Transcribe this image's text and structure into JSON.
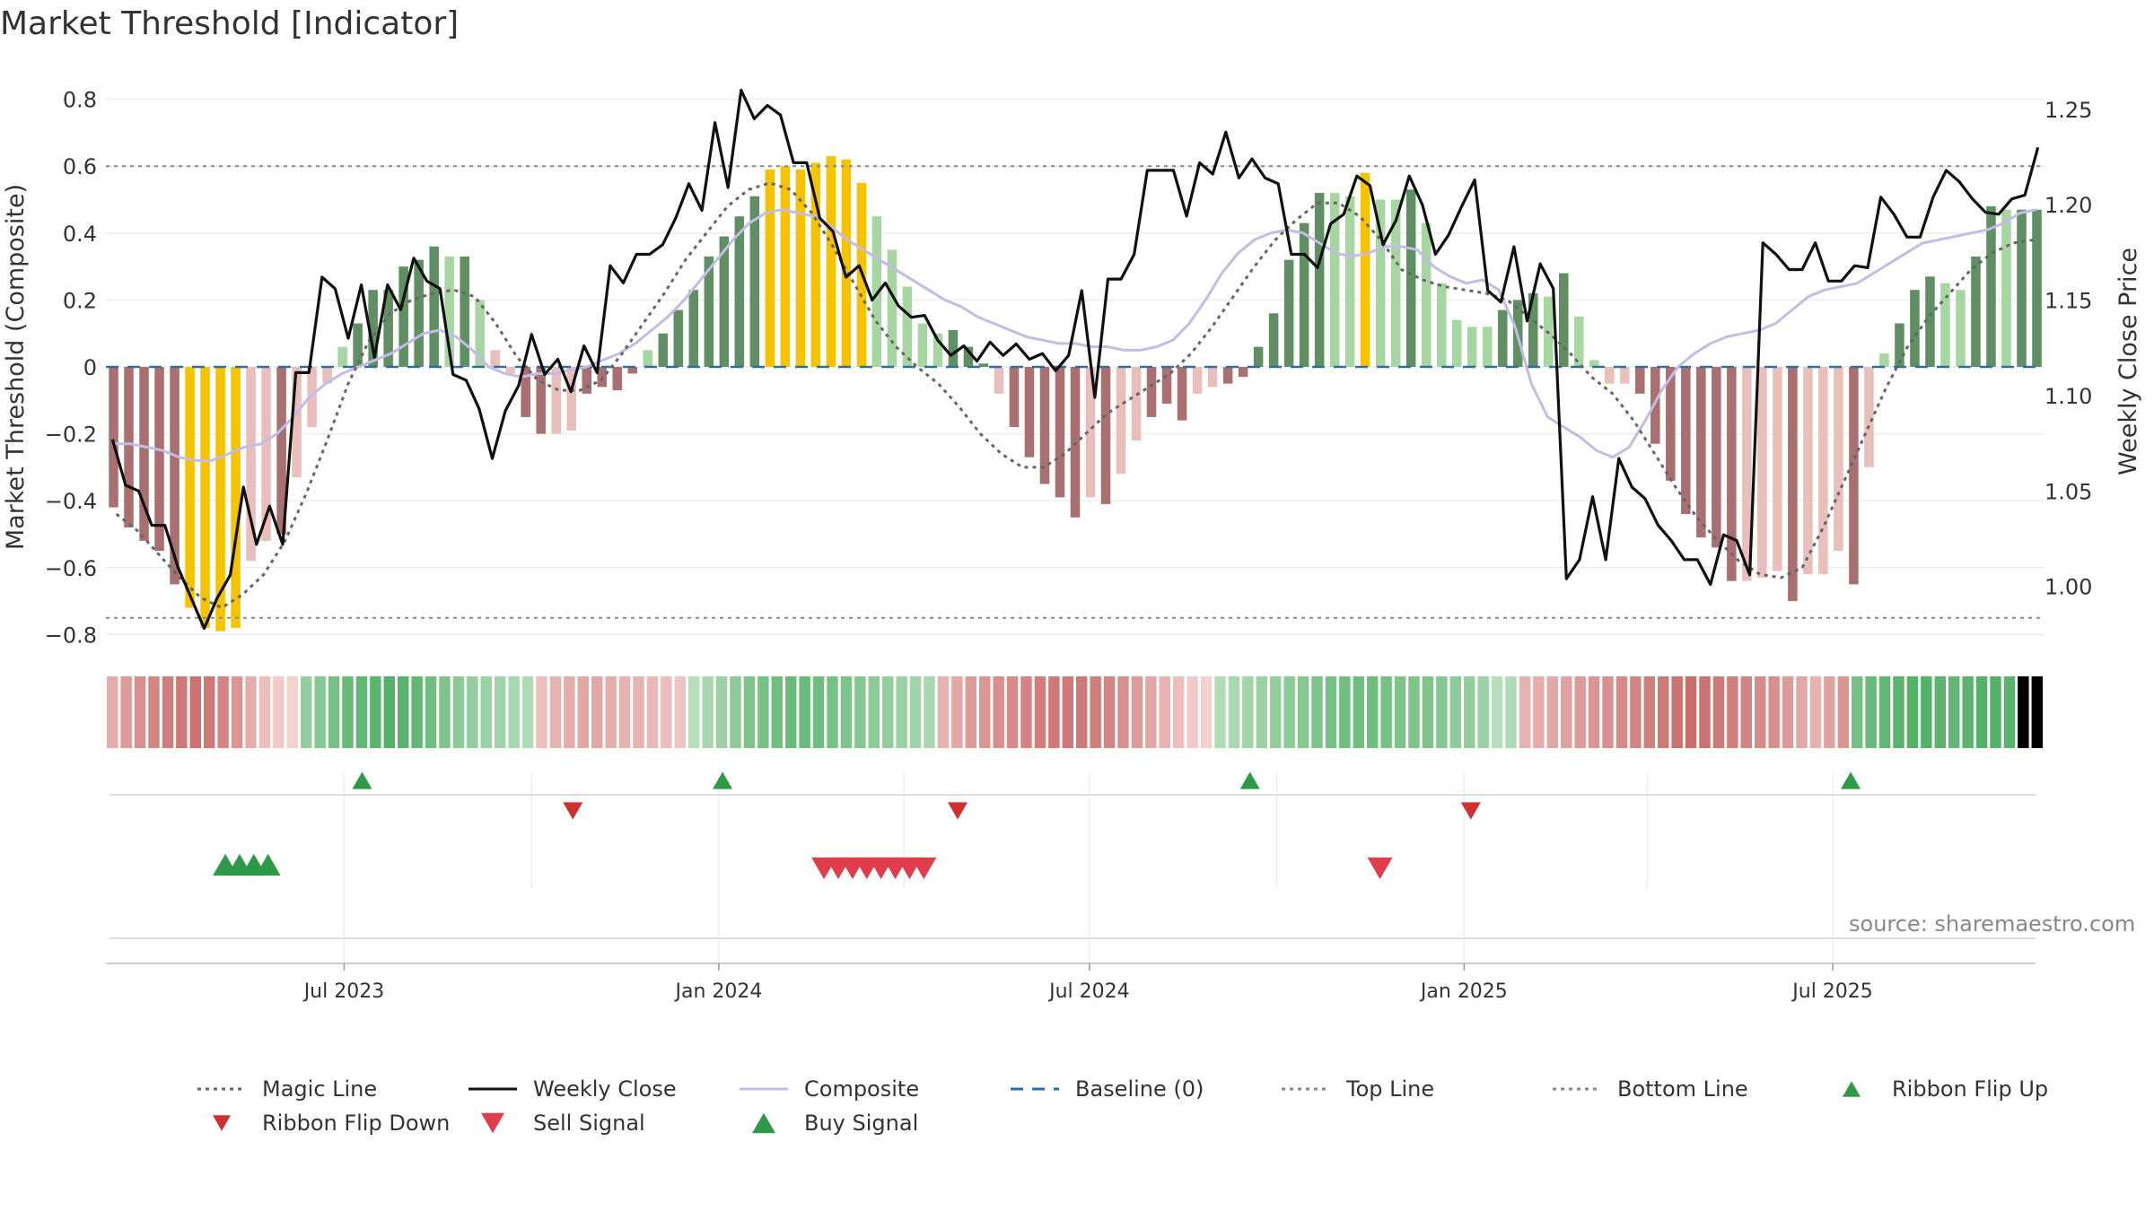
{
  "title": "Market Threshold [Indicator]",
  "source": "source: sharemaestro.com",
  "colors": {
    "dark_green": "#5f8f62",
    "light_green": "#a8d6a3",
    "dark_red": "#a87070",
    "light_red": "#e9bfbc",
    "yellow": "#f6c300",
    "weekly_close": "#111111",
    "composite": "#c3bde6",
    "magic_line": "#666666",
    "baseline": "#2f6fa0",
    "threshold_lines": "#888888",
    "buy": "#2e9a48",
    "sell": "#e03c4b",
    "flip_up": "#2e9a48",
    "flip_down": "#d03030"
  },
  "chart_data": {
    "type": "bar",
    "left_axis": {
      "label": "Market Threshold (Composite)",
      "ylim": [
        -0.85,
        0.85
      ],
      "ticks": [
        "0.8",
        "0.6",
        "0.4",
        "0.2",
        "0",
        "−0.2",
        "−0.4",
        "−0.6",
        "−0.8"
      ],
      "tick_values": [
        0.8,
        0.6,
        0.4,
        0.2,
        0,
        -0.2,
        -0.4,
        -0.6,
        -0.8
      ]
    },
    "right_axis": {
      "label": "Weekly Close Price",
      "ylim": [
        0.966,
        1.264
      ],
      "ticks": [
        "1.25",
        "1.20",
        "1.15",
        "1.10",
        "1.05",
        "1.00"
      ],
      "tick_values": [
        1.25,
        1.2,
        1.15,
        1.1,
        1.05,
        1.0
      ]
    },
    "x_axis": {
      "type": "weekly dates",
      "start": "2023-03-06",
      "end": "2025-10-13",
      "ticks": [
        "Jul 2023",
        "Jan 2024",
        "Jul 2024",
        "Jan 2025",
        "Jul 2025"
      ],
      "tick_dates": [
        "2023-07-01",
        "2024-01-01",
        "2024-07-01",
        "2025-01-01",
        "2025-07-01"
      ]
    },
    "reference_lines": {
      "top_line": 0.6,
      "bottom_line": -0.75,
      "baseline": 0
    },
    "composite_bars": [
      -0.42,
      -0.48,
      -0.52,
      -0.55,
      -0.65,
      -0.72,
      -0.78,
      -0.79,
      -0.78,
      -0.58,
      -0.52,
      -0.5,
      -0.33,
      -0.18,
      -0.05,
      0.06,
      0.13,
      0.23,
      0.23,
      0.3,
      0.32,
      0.36,
      0.33,
      0.33,
      0.2,
      0.05,
      -0.02,
      -0.15,
      -0.2,
      -0.2,
      -0.19,
      -0.08,
      -0.06,
      -0.07,
      -0.02,
      0.05,
      0.1,
      0.17,
      0.23,
      0.33,
      0.39,
      0.45,
      0.51,
      0.59,
      0.6,
      0.59,
      0.61,
      0.63,
      0.62,
      0.55,
      0.45,
      0.35,
      0.24,
      0.13,
      0.1,
      0.11,
      0.06,
      0.01,
      -0.08,
      -0.18,
      -0.27,
      -0.35,
      -0.39,
      -0.45,
      -0.39,
      -0.41,
      -0.32,
      -0.22,
      -0.15,
      -0.11,
      -0.16,
      -0.08,
      -0.06,
      -0.05,
      -0.03,
      0.06,
      0.16,
      0.32,
      0.43,
      0.52,
      0.52,
      0.51,
      0.58,
      0.5,
      0.5,
      0.53,
      0.43,
      0.25,
      0.14,
      0.12,
      0.12,
      0.17,
      0.2,
      0.22,
      0.21,
      0.28,
      0.15,
      0.02,
      -0.05,
      -0.05,
      -0.08,
      -0.23,
      -0.34,
      -0.44,
      -0.51,
      -0.54,
      -0.64,
      -0.64,
      -0.63,
      -0.61,
      -0.7,
      -0.62,
      -0.62,
      -0.55,
      -0.65,
      -0.3,
      0.04,
      0.13,
      0.23,
      0.27,
      0.25,
      0.23,
      0.33,
      0.48,
      0.47,
      0.47,
      0.47
    ],
    "bar_colors": [
      "dr",
      "dr",
      "dr",
      "dr",
      "dr",
      "yl",
      "yl",
      "yl",
      "yl",
      "lr",
      "lr",
      "dr",
      "lr",
      "lr",
      "lr",
      "lg",
      "dg",
      "dg",
      "dg",
      "dg",
      "dg",
      "dg",
      "lg",
      "dg",
      "lg",
      "lr",
      "lr",
      "dr",
      "dr",
      "lr",
      "lr",
      "dr",
      "dr",
      "dr",
      "dr",
      "lg",
      "dg",
      "dg",
      "dg",
      "dg",
      "dg",
      "dg",
      "dg",
      "yl",
      "yl",
      "yl",
      "yl",
      "yl",
      "yl",
      "yl",
      "lg",
      "lg",
      "lg",
      "lg",
      "lg",
      "dg",
      "dg",
      "dg",
      "lr",
      "dr",
      "dr",
      "dr",
      "dr",
      "dr",
      "lr",
      "dr",
      "lr",
      "lr",
      "dr",
      "dr",
      "dr",
      "lr",
      "lr",
      "dr",
      "dr",
      "dg",
      "dg",
      "dg",
      "dg",
      "dg",
      "lg",
      "lg",
      "yl",
      "lg",
      "lg",
      "dg",
      "lg",
      "lg",
      "lg",
      "lg",
      "lg",
      "dg",
      "dg",
      "dg",
      "lg",
      "dg",
      "lg",
      "lg",
      "lr",
      "lr",
      "dr",
      "dr",
      "dr",
      "dr",
      "dr",
      "dr",
      "dr",
      "lr",
      "lr",
      "lr",
      "dr",
      "lr",
      "lr",
      "lr",
      "dr",
      "lr",
      "lg",
      "dg",
      "dg",
      "dg",
      "lg",
      "lg",
      "dg",
      "dg",
      "lg",
      "dg",
      "dg"
    ],
    "series": [
      {
        "name": "Weekly Close",
        "axis": "right",
        "values": [
          1.077,
          1.053,
          1.05,
          1.032,
          1.032,
          1.01,
          0.994,
          0.978,
          0.994,
          1.006,
          1.052,
          1.022,
          1.042,
          1.022,
          1.112,
          1.112,
          1.162,
          1.156,
          1.13,
          1.158,
          1.12,
          1.158,
          1.145,
          1.172,
          1.16,
          1.156,
          1.111,
          1.108,
          1.093,
          1.067,
          1.092,
          1.105,
          1.132,
          1.111,
          1.119,
          1.102,
          1.126,
          1.112,
          1.168,
          1.159,
          1.174,
          1.174,
          1.179,
          1.193,
          1.211,
          1.197,
          1.243,
          1.209,
          1.26,
          1.245,
          1.252,
          1.247,
          1.222,
          1.222,
          1.193,
          1.186,
          1.162,
          1.168,
          1.15,
          1.159,
          1.147,
          1.141,
          1.142,
          1.129,
          1.121,
          1.126,
          1.118,
          1.128,
          1.121,
          1.127,
          1.119,
          1.122,
          1.113,
          1.121,
          1.155,
          1.099,
          1.161,
          1.161,
          1.174,
          1.218,
          1.218,
          1.218,
          1.194,
          1.222,
          1.216,
          1.238,
          1.214,
          1.224,
          1.214,
          1.211,
          1.174,
          1.174,
          1.167,
          1.19,
          1.195,
          1.215,
          1.21,
          1.179,
          1.192,
          1.215,
          1.2,
          1.174,
          1.184,
          1.199,
          1.213,
          1.155,
          1.149,
          1.178,
          1.139,
          1.169,
          1.156,
          1.004,
          1.014,
          1.047,
          1.014,
          1.067,
          1.052,
          1.046,
          1.032,
          1.024,
          1.014,
          1.014,
          1.001,
          1.027,
          1.024,
          1.006,
          1.18,
          1.174,
          1.166,
          1.166,
          1.18,
          1.16,
          1.16,
          1.168,
          1.167,
          1.204,
          1.195,
          1.183,
          1.183,
          1.204,
          1.218,
          1.212,
          1.203,
          1.196,
          1.195,
          1.203,
          1.205,
          1.23
        ]
      },
      {
        "name": "Composite",
        "axis": "left",
        "values": [
          -0.23,
          -0.23,
          -0.24,
          -0.25,
          -0.27,
          -0.28,
          -0.28,
          -0.26,
          -0.24,
          -0.23,
          -0.2,
          -0.15,
          -0.09,
          -0.05,
          -0.02,
          0.0,
          0.02,
          0.04,
          0.07,
          0.1,
          0.11,
          0.09,
          0.05,
          0.0,
          -0.02,
          -0.03,
          -0.02,
          -0.02,
          -0.01,
          0.0,
          0.02,
          0.04,
          0.07,
          0.11,
          0.15,
          0.2,
          0.26,
          0.32,
          0.38,
          0.43,
          0.46,
          0.47,
          0.46,
          0.45,
          0.42,
          0.38,
          0.35,
          0.32,
          0.29,
          0.26,
          0.23,
          0.2,
          0.18,
          0.15,
          0.13,
          0.11,
          0.09,
          0.08,
          0.07,
          0.07,
          0.06,
          0.06,
          0.05,
          0.05,
          0.06,
          0.08,
          0.13,
          0.2,
          0.28,
          0.34,
          0.38,
          0.4,
          0.41,
          0.4,
          0.37,
          0.34,
          0.33,
          0.34,
          0.36,
          0.36,
          0.35,
          0.3,
          0.27,
          0.25,
          0.26,
          0.23,
          0.12,
          -0.05,
          -0.15,
          -0.18,
          -0.21,
          -0.25,
          -0.27,
          -0.24,
          -0.16,
          -0.07,
          0.0,
          0.04,
          0.07,
          0.09,
          0.1,
          0.11,
          0.13,
          0.17,
          0.21,
          0.23,
          0.24,
          0.25,
          0.28,
          0.31,
          0.34,
          0.37,
          0.38,
          0.39,
          0.4,
          0.41,
          0.43,
          0.46,
          0.47
        ]
      },
      {
        "name": "Magic Line",
        "axis": "left",
        "values": [
          -0.44,
          -0.49,
          -0.56,
          -0.63,
          -0.69,
          -0.72,
          -0.68,
          -0.62,
          -0.52,
          -0.38,
          -0.22,
          -0.05,
          0.08,
          0.16,
          0.2,
          0.22,
          0.23,
          0.21,
          0.13,
          0.03,
          -0.04,
          -0.07,
          -0.07,
          -0.04,
          0.04,
          0.13,
          0.22,
          0.32,
          0.4,
          0.48,
          0.53,
          0.55,
          0.53,
          0.46,
          0.36,
          0.25,
          0.14,
          0.06,
          0.0,
          -0.05,
          -0.12,
          -0.2,
          -0.26,
          -0.3,
          -0.3,
          -0.26,
          -0.2,
          -0.14,
          -0.1,
          -0.06,
          -0.02,
          0.04,
          0.12,
          0.21,
          0.3,
          0.38,
          0.44,
          0.49,
          0.49,
          0.45,
          0.38,
          0.29,
          0.26,
          0.24,
          0.23,
          0.22,
          0.2,
          0.15,
          0.1,
          0.04,
          -0.03,
          -0.08,
          -0.16,
          -0.26,
          -0.36,
          -0.45,
          -0.52,
          -0.58,
          -0.62,
          -0.63,
          -0.6,
          -0.48,
          -0.34,
          -0.2,
          -0.06,
          0.06,
          0.15,
          0.22,
          0.29,
          0.34,
          0.37,
          0.38
        ]
      }
    ],
    "ribbon_direction": [
      -1,
      -1,
      -1,
      -1,
      -1,
      -1,
      -1,
      -1,
      -1,
      -1,
      -1,
      -1,
      -1,
      -1,
      1,
      1,
      1,
      1,
      1,
      1,
      1,
      1,
      1,
      1,
      1,
      1,
      1,
      1,
      1,
      1,
      1,
      -1,
      -1,
      -1,
      -1,
      -1,
      -1,
      -1,
      -1,
      -1,
      -1,
      -1,
      1,
      1,
      1,
      1,
      1,
      1,
      1,
      1,
      1,
      1,
      1,
      1,
      1,
      1,
      1,
      1,
      1,
      1,
      -1,
      -1,
      -1,
      -1,
      -1,
      -1,
      -1,
      -1,
      -1,
      -1,
      -1,
      -1,
      -1,
      -1,
      -1,
      -1,
      -1,
      -1,
      -1,
      -1,
      1,
      1,
      1,
      1,
      1,
      1,
      1,
      1,
      1,
      1,
      1,
      1,
      1,
      1,
      1,
      1,
      1,
      1,
      1,
      1,
      1,
      1,
      -1,
      -1,
      -1,
      -1,
      -1,
      -1,
      -1,
      -1,
      -1,
      -1,
      -1,
      -1,
      -1,
      -1,
      -1,
      -1,
      -1,
      -1,
      -1,
      -1,
      -1,
      -1,
      -1,
      -1,
      1,
      1,
      1,
      1,
      1,
      1,
      1,
      1,
      1,
      1,
      1,
      1,
      1,
      1
    ],
    "ribbon_strength": [
      0.35,
      0.5,
      0.6,
      0.7,
      0.75,
      0.8,
      0.85,
      0.8,
      0.7,
      0.55,
      0.35,
      0.2,
      0.1,
      0.05,
      0.45,
      0.55,
      0.65,
      0.75,
      0.8,
      0.85,
      0.9,
      0.85,
      0.8,
      0.7,
      0.6,
      0.5,
      0.45,
      0.4,
      0.35,
      0.3,
      0.25,
      0.2,
      0.3,
      0.35,
      0.4,
      0.4,
      0.35,
      0.3,
      0.3,
      0.25,
      0.2,
      0.15,
      0.2,
      0.3,
      0.4,
      0.5,
      0.6,
      0.65,
      0.7,
      0.75,
      0.75,
      0.7,
      0.65,
      0.6,
      0.55,
      0.5,
      0.45,
      0.4,
      0.35,
      0.3,
      0.3,
      0.4,
      0.5,
      0.55,
      0.6,
      0.65,
      0.7,
      0.75,
      0.8,
      0.8,
      0.8,
      0.75,
      0.7,
      0.6,
      0.5,
      0.4,
      0.3,
      0.2,
      0.1,
      0.05,
      0.25,
      0.3,
      0.35,
      0.4,
      0.45,
      0.5,
      0.55,
      0.6,
      0.65,
      0.7,
      0.7,
      0.7,
      0.65,
      0.6,
      0.6,
      0.6,
      0.55,
      0.5,
      0.45,
      0.4,
      0.2,
      0.25,
      0.3,
      0.35,
      0.4,
      0.45,
      0.5,
      0.55,
      0.6,
      0.65,
      0.7,
      0.75,
      0.8,
      0.85,
      0.9,
      0.85,
      0.8,
      0.75,
      0.7,
      0.65,
      0.6,
      0.5,
      0.4,
      0.3,
      0.45,
      0.55,
      0.65,
      0.75,
      0.8,
      0.85,
      0.9,
      0.9,
      0.85,
      0.8,
      0.85,
      0.9,
      0.9,
      0.85
    ],
    "ribbon_flip_up": [
      "2023-07-01",
      "2023-12-25",
      "2024-09-09",
      "2025-07-01"
    ],
    "ribbon_flip_down": [
      "2023-10-16",
      "2024-04-22",
      "2024-12-30"
    ],
    "buy_signal": [
      "2023-05-01",
      "2023-05-08",
      "2023-05-15",
      "2023-05-22"
    ],
    "sell_signal": [
      "2024-02-19",
      "2024-02-26",
      "2024-03-04",
      "2024-03-11",
      "2024-03-18",
      "2024-03-25",
      "2024-04-01",
      "2024-04-08",
      "2024-11-18"
    ]
  },
  "legend": [
    {
      "label": "Magic Line",
      "symbol": "dotted-line",
      "color": "#666666"
    },
    {
      "label": "Weekly Close",
      "symbol": "solid-line",
      "color": "#111111"
    },
    {
      "label": "Composite",
      "symbol": "solid-line",
      "color": "#c3bde6"
    },
    {
      "label": "Baseline (0)",
      "symbol": "dashed-line",
      "color": "#2f6fa0"
    },
    {
      "label": "Top Line",
      "symbol": "dotted-line",
      "color": "#888888"
    },
    {
      "label": "Bottom Line",
      "symbol": "dotted-line",
      "color": "#888888"
    },
    {
      "label": "Ribbon Flip Up",
      "symbol": "triangle-up-small",
      "color": "#2e9a48"
    },
    {
      "label": "Ribbon Flip Down",
      "symbol": "triangle-down-small",
      "color": "#d03030"
    },
    {
      "label": "Sell Signal",
      "symbol": "triangle-down",
      "color": "#e03c4b"
    },
    {
      "label": "Buy Signal",
      "symbol": "triangle-up",
      "color": "#2e9a48"
    }
  ]
}
